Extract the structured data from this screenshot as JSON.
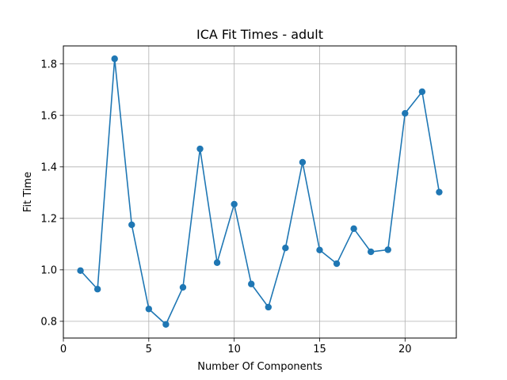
{
  "chart_data": {
    "type": "line",
    "title": "ICA Fit Times - adult",
    "xlabel": "Number Of Components",
    "ylabel": "Fit Time",
    "xlim": [
      0,
      23
    ],
    "ylim": [
      0.735,
      1.87
    ],
    "xticks": [
      0,
      5,
      10,
      15,
      20
    ],
    "yticks": [
      0.8,
      1.0,
      1.2,
      1.4,
      1.6,
      1.8
    ],
    "grid": true,
    "series": [
      {
        "x": [
          1,
          2,
          3,
          4,
          5,
          6,
          7,
          8,
          9,
          10,
          11,
          12,
          13,
          14,
          15,
          16,
          17,
          18,
          19,
          20,
          21,
          22
        ],
        "y": [
          0.997,
          0.925,
          1.82,
          1.175,
          0.848,
          0.788,
          0.932,
          1.47,
          1.028,
          1.255,
          0.945,
          0.855,
          1.085,
          1.418,
          1.077,
          1.024,
          1.16,
          1.07,
          1.078,
          1.608,
          1.692,
          1.302
        ],
        "color": "#1f77b4",
        "marker": "circle"
      }
    ]
  }
}
